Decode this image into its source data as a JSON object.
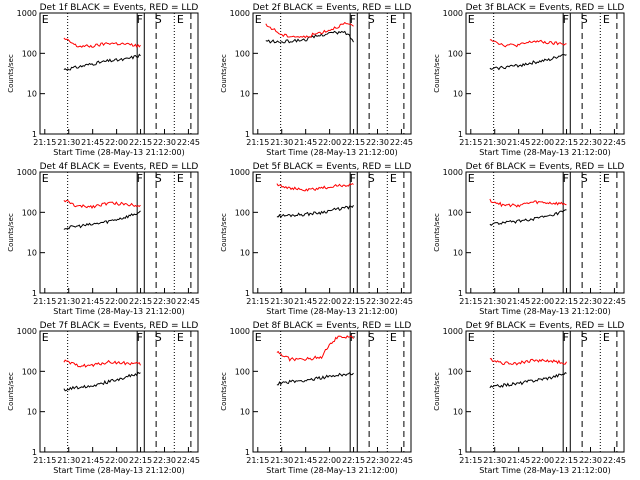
{
  "figure": {
    "xlabel": "Start Time (28-May-13 21:12:00)",
    "ylabel": "Counts/sec",
    "x_ticks": [
      "21:15",
      "21:30",
      "21:45",
      "22:00",
      "22:15",
      "22:30",
      "22:45"
    ],
    "y_ticks": [
      "1",
      "10",
      "100",
      "1000"
    ],
    "markers": [
      "E",
      "F",
      "S",
      "E"
    ],
    "colors": {
      "events": "#000000",
      "lld": "#ff0000",
      "axes": "#000000"
    }
  },
  "chart_data": [
    {
      "type": "line",
      "title": "Det 1f BLACK = Events, RED = LLD",
      "xlabel": "Start Time (28-May-13 21:12:00)",
      "ylabel": "Counts/sec",
      "ylim": [
        1,
        1000
      ],
      "yscale": "log",
      "x": [
        "21:27",
        "21:35",
        "21:45",
        "21:55",
        "22:05",
        "22:15"
      ],
      "series": [
        {
          "values": [
            40,
            45,
            55,
            65,
            70,
            90
          ]
        },
        {
          "values": [
            230,
            150,
            150,
            180,
            170,
            150
          ]
        }
      ]
    },
    {
      "type": "line",
      "title": "Det 2f BLACK = Events, RED = LLD",
      "xlabel": "Start Time (28-May-13 21:12:00)",
      "ylabel": "Counts/sec",
      "ylim": [
        1,
        1000
      ],
      "yscale": "log",
      "x": [
        "21:20",
        "21:30",
        "21:45",
        "22:00",
        "22:10",
        "22:15"
      ],
      "series": [
        {
          "values": [
            200,
            190,
            220,
            320,
            330,
            200
          ]
        },
        {
          "values": [
            500,
            280,
            250,
            380,
            550,
            450
          ]
        }
      ]
    },
    {
      "type": "line",
      "title": "Det 3f BLACK = Events, RED = LLD",
      "xlabel": "Start Time (28-May-13 21:12:00)",
      "ylabel": "Counts/sec",
      "ylim": [
        1,
        1000
      ],
      "yscale": "log",
      "x": [
        "21:27",
        "21:35",
        "21:45",
        "21:55",
        "22:05",
        "22:15"
      ],
      "series": [
        {
          "values": [
            40,
            45,
            50,
            60,
            70,
            100
          ]
        },
        {
          "values": [
            230,
            160,
            160,
            200,
            180,
            170
          ]
        }
      ]
    },
    {
      "type": "line",
      "title": "Det 4f BLACK = Events, RED = LLD",
      "xlabel": "Start Time (28-May-13 21:12:00)",
      "ylabel": "Counts/sec",
      "ylim": [
        1,
        1000
      ],
      "yscale": "log",
      "x": [
        "21:27",
        "21:35",
        "21:45",
        "21:55",
        "22:05",
        "22:15"
      ],
      "series": [
        {
          "values": [
            40,
            45,
            50,
            60,
            75,
            100
          ]
        },
        {
          "values": [
            200,
            140,
            140,
            170,
            160,
            150
          ]
        }
      ]
    },
    {
      "type": "line",
      "title": "Det 5f BLACK = Events, RED = LLD",
      "xlabel": "Start Time (28-May-13 21:12:00)",
      "ylabel": "Counts/sec",
      "ylim": [
        1,
        1000
      ],
      "yscale": "log",
      "x": [
        "21:27",
        "21:35",
        "21:45",
        "21:55",
        "22:05",
        "22:15"
      ],
      "series": [
        {
          "values": [
            80,
            85,
            90,
            100,
            120,
            140
          ]
        },
        {
          "values": [
            500,
            400,
            350,
            400,
            450,
            500
          ]
        }
      ]
    },
    {
      "type": "line",
      "title": "Det 6f BLACK = Events, RED = LLD",
      "xlabel": "Start Time (28-May-13 21:12:00)",
      "ylabel": "Counts/sec",
      "ylim": [
        1,
        1000
      ],
      "yscale": "log",
      "x": [
        "21:27",
        "21:35",
        "21:45",
        "21:55",
        "22:05",
        "22:15"
      ],
      "series": [
        {
          "values": [
            50,
            55,
            60,
            70,
            80,
            110
          ]
        },
        {
          "values": [
            200,
            150,
            150,
            180,
            170,
            160
          ]
        }
      ]
    },
    {
      "type": "line",
      "title": "Det 7f BLACK = Events, RED = LLD",
      "xlabel": "Start Time (28-May-13 21:12:00)",
      "ylabel": "Counts/sec",
      "ylim": [
        1,
        1000
      ],
      "yscale": "log",
      "x": [
        "21:27",
        "21:35",
        "21:45",
        "21:55",
        "22:05",
        "22:15"
      ],
      "series": [
        {
          "values": [
            35,
            40,
            45,
            55,
            70,
            90
          ]
        },
        {
          "values": [
            180,
            140,
            140,
            170,
            160,
            150
          ]
        }
      ]
    },
    {
      "type": "line",
      "title": "Det 8f BLACK = Events, RED = LLD",
      "xlabel": "Start Time (28-May-13 21:12:00)",
      "ylabel": "Counts/sec",
      "ylim": [
        1,
        1000
      ],
      "yscale": "log",
      "x": [
        "21:27",
        "21:35",
        "21:45",
        "21:55",
        "22:05",
        "22:15"
      ],
      "series": [
        {
          "values": [
            50,
            55,
            60,
            70,
            80,
            90
          ]
        },
        {
          "values": [
            300,
            200,
            200,
            230,
            700,
            700
          ]
        }
      ]
    },
    {
      "type": "line",
      "title": "Det 9f BLACK = Events, RED = LLD",
      "xlabel": "Start Time (28-May-13 21:12:00)",
      "ylabel": "Counts/sec",
      "ylim": [
        1,
        1000
      ],
      "yscale": "log",
      "x": [
        "21:27",
        "21:35",
        "21:45",
        "21:55",
        "22:05",
        "22:15"
      ],
      "series": [
        {
          "values": [
            40,
            45,
            50,
            60,
            70,
            90
          ]
        },
        {
          "values": [
            200,
            160,
            160,
            190,
            180,
            160
          ]
        }
      ]
    }
  ]
}
